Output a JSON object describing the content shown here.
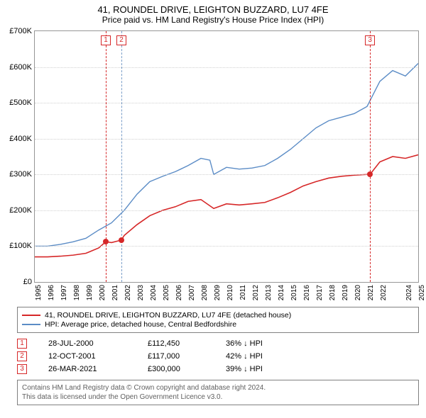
{
  "title": "41, ROUNDEL DRIVE, LEIGHTON BUZZARD, LU7 4FE",
  "subtitle": "Price paid vs. HM Land Registry's House Price Index (HPI)",
  "chart": {
    "type": "line",
    "background_color": "#ffffff",
    "grid_color": "#d0d0d0",
    "border_color": "#969696",
    "x": {
      "min": 1995,
      "max": 2025,
      "ticks": [
        1995,
        1996,
        1997,
        1998,
        1999,
        2000,
        2001,
        2002,
        2003,
        2004,
        2005,
        2006,
        2007,
        2008,
        2009,
        2010,
        2011,
        2012,
        2013,
        2014,
        2015,
        2016,
        2017,
        2018,
        2019,
        2020,
        2021,
        2022,
        2024,
        2025
      ]
    },
    "y": {
      "min": 0,
      "max": 700000,
      "ticks": [
        0,
        100000,
        200000,
        300000,
        400000,
        500000,
        600000,
        700000
      ],
      "tick_labels": [
        "£0",
        "£100K",
        "£200K",
        "£300K",
        "£400K",
        "£500K",
        "£600K",
        "£700K"
      ]
    },
    "series": [
      {
        "name": "subject",
        "color": "#d62728",
        "width": 1.6,
        "points": [
          [
            1995,
            70000
          ],
          [
            1996,
            70000
          ],
          [
            1997,
            72000
          ],
          [
            1998,
            75000
          ],
          [
            1999,
            80000
          ],
          [
            2000,
            95000
          ],
          [
            2000.56,
            112450
          ],
          [
            2001,
            110000
          ],
          [
            2001.78,
            117000
          ],
          [
            2002,
            130000
          ],
          [
            2003,
            160000
          ],
          [
            2004,
            185000
          ],
          [
            2005,
            200000
          ],
          [
            2006,
            210000
          ],
          [
            2007,
            225000
          ],
          [
            2008,
            230000
          ],
          [
            2009,
            205000
          ],
          [
            2010,
            218000
          ],
          [
            2011,
            215000
          ],
          [
            2012,
            218000
          ],
          [
            2013,
            222000
          ],
          [
            2014,
            235000
          ],
          [
            2015,
            250000
          ],
          [
            2016,
            268000
          ],
          [
            2017,
            280000
          ],
          [
            2018,
            290000
          ],
          [
            2019,
            295000
          ],
          [
            2020,
            298000
          ],
          [
            2021,
            300000
          ],
          [
            2021.23,
            300000
          ],
          [
            2022,
            335000
          ],
          [
            2023,
            350000
          ],
          [
            2024,
            345000
          ],
          [
            2025,
            355000
          ]
        ]
      },
      {
        "name": "hpi",
        "color": "#5b8cc6",
        "width": 1.4,
        "points": [
          [
            1995,
            100000
          ],
          [
            1996,
            100000
          ],
          [
            1997,
            105000
          ],
          [
            1998,
            112000
          ],
          [
            1999,
            122000
          ],
          [
            2000,
            145000
          ],
          [
            2001,
            165000
          ],
          [
            2002,
            200000
          ],
          [
            2003,
            245000
          ],
          [
            2004,
            280000
          ],
          [
            2005,
            295000
          ],
          [
            2006,
            308000
          ],
          [
            2007,
            325000
          ],
          [
            2008,
            345000
          ],
          [
            2008.7,
            340000
          ],
          [
            2009,
            300000
          ],
          [
            2010,
            320000
          ],
          [
            2011,
            315000
          ],
          [
            2012,
            318000
          ],
          [
            2013,
            325000
          ],
          [
            2014,
            345000
          ],
          [
            2015,
            370000
          ],
          [
            2016,
            400000
          ],
          [
            2017,
            430000
          ],
          [
            2018,
            450000
          ],
          [
            2019,
            460000
          ],
          [
            2020,
            470000
          ],
          [
            2021,
            490000
          ],
          [
            2022,
            560000
          ],
          [
            2023,
            590000
          ],
          [
            2024,
            575000
          ],
          [
            2025,
            610000
          ]
        ]
      }
    ],
    "markers": [
      {
        "x": 2000.56,
        "y": 112450,
        "color": "#d62728"
      },
      {
        "x": 2001.78,
        "y": 117000,
        "color": "#d62728"
      },
      {
        "x": 2021.23,
        "y": 300000,
        "color": "#d62728"
      }
    ],
    "event_lines": [
      {
        "x": 2000.56,
        "label": "1",
        "line_color": "red"
      },
      {
        "x": 2001.78,
        "label": "2",
        "line_color": "blue"
      },
      {
        "x": 2021.23,
        "label": "3",
        "line_color": "red"
      }
    ]
  },
  "legend": {
    "items": [
      {
        "color": "#d62728",
        "label": "41, ROUNDEL DRIVE, LEIGHTON BUZZARD, LU7 4FE (detached house)"
      },
      {
        "color": "#5b8cc6",
        "label": "HPI: Average price, detached house, Central Bedfordshire"
      }
    ]
  },
  "events": [
    {
      "n": "1",
      "date": "28-JUL-2000",
      "price": "£112,450",
      "hpi": "36% ↓ HPI"
    },
    {
      "n": "2",
      "date": "12-OCT-2001",
      "price": "£117,000",
      "hpi": "42% ↓ HPI"
    },
    {
      "n": "3",
      "date": "26-MAR-2021",
      "price": "£300,000",
      "hpi": "39% ↓ HPI"
    }
  ],
  "footer": {
    "line1": "Contains HM Land Registry data © Crown copyright and database right 2024.",
    "line2": "This data is licensed under the Open Government Licence v3.0."
  }
}
